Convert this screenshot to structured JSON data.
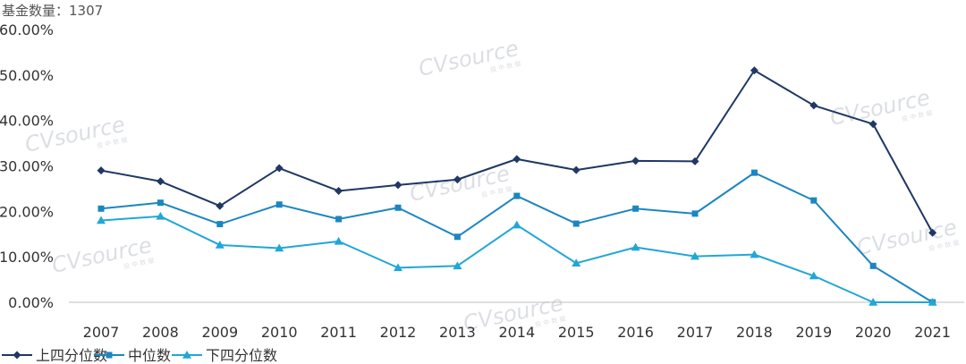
{
  "header": {
    "fund_count_label": "基金数量：1307"
  },
  "watermark": {
    "brand": "CVsource",
    "sub": "投 中 数 据"
  },
  "chart_data": {
    "type": "line",
    "title": "",
    "xlabel": "",
    "ylabel": "",
    "categories": [
      "2007",
      "2008",
      "2009",
      "2010",
      "2011",
      "2012",
      "2013",
      "2014",
      "2015",
      "2016",
      "2017",
      "2018",
      "2019",
      "2020",
      "2021"
    ],
    "ylim": [
      0,
      60
    ],
    "y_ticks": [
      0,
      10,
      20,
      30,
      40,
      50,
      60
    ],
    "y_tick_labels": [
      "0.00%",
      "10.00%",
      "20.00%",
      "30.00%",
      "40.00%",
      "50.00%",
      "60.00%"
    ],
    "grid": false,
    "legend_position": "bottom-left",
    "series": [
      {
        "name": "上四分位数",
        "marker": "diamond",
        "color": "#1f3864",
        "values": [
          29.0,
          26.6,
          21.2,
          29.5,
          24.5,
          25.8,
          27.0,
          31.5,
          29.1,
          31.1,
          31.0,
          51.0,
          43.3,
          39.2,
          15.3
        ]
      },
      {
        "name": "中位数",
        "marker": "square",
        "color": "#1b86c1",
        "values": [
          20.6,
          21.9,
          17.2,
          21.5,
          18.3,
          20.8,
          14.4,
          23.4,
          17.3,
          20.6,
          19.5,
          28.5,
          22.4,
          8.0,
          0.0
        ]
      },
      {
        "name": "下四分位数",
        "marker": "triangle",
        "color": "#21a6d8",
        "values": [
          18.0,
          18.9,
          12.6,
          11.9,
          13.4,
          7.6,
          8.0,
          17.0,
          8.6,
          12.1,
          10.1,
          10.5,
          5.8,
          0.0,
          0.0
        ]
      }
    ]
  }
}
